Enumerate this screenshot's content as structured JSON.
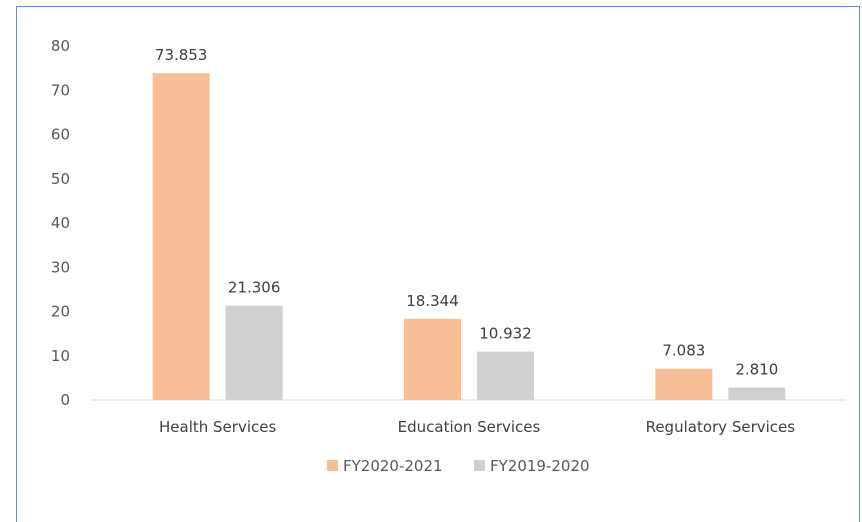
{
  "chart_data": {
    "type": "bar",
    "title": "",
    "xlabel": "",
    "ylabel": "",
    "categories": [
      "Health Services",
      "Education Services",
      "Regulatory Services"
    ],
    "series": [
      {
        "name": "FY2020-2021",
        "color": "#f8be96",
        "values": [
          73.853,
          18.344,
          7.083
        ],
        "labels": [
          "73.853",
          "18.344",
          "7.083"
        ]
      },
      {
        "name": "FY2019-2020",
        "color": "#d0d0d0",
        "values": [
          21.306,
          10.932,
          2.81
        ],
        "labels": [
          "21.306",
          "10.932",
          "2.810"
        ]
      }
    ],
    "ylim": [
      0,
      80
    ],
    "yticks": [
      0,
      10,
      20,
      30,
      40,
      50,
      60,
      70,
      80
    ],
    "grid": false,
    "legend_position": "bottom",
    "colors": {
      "axis": "#d9d9d9",
      "frame": "#5b8fd0"
    }
  }
}
